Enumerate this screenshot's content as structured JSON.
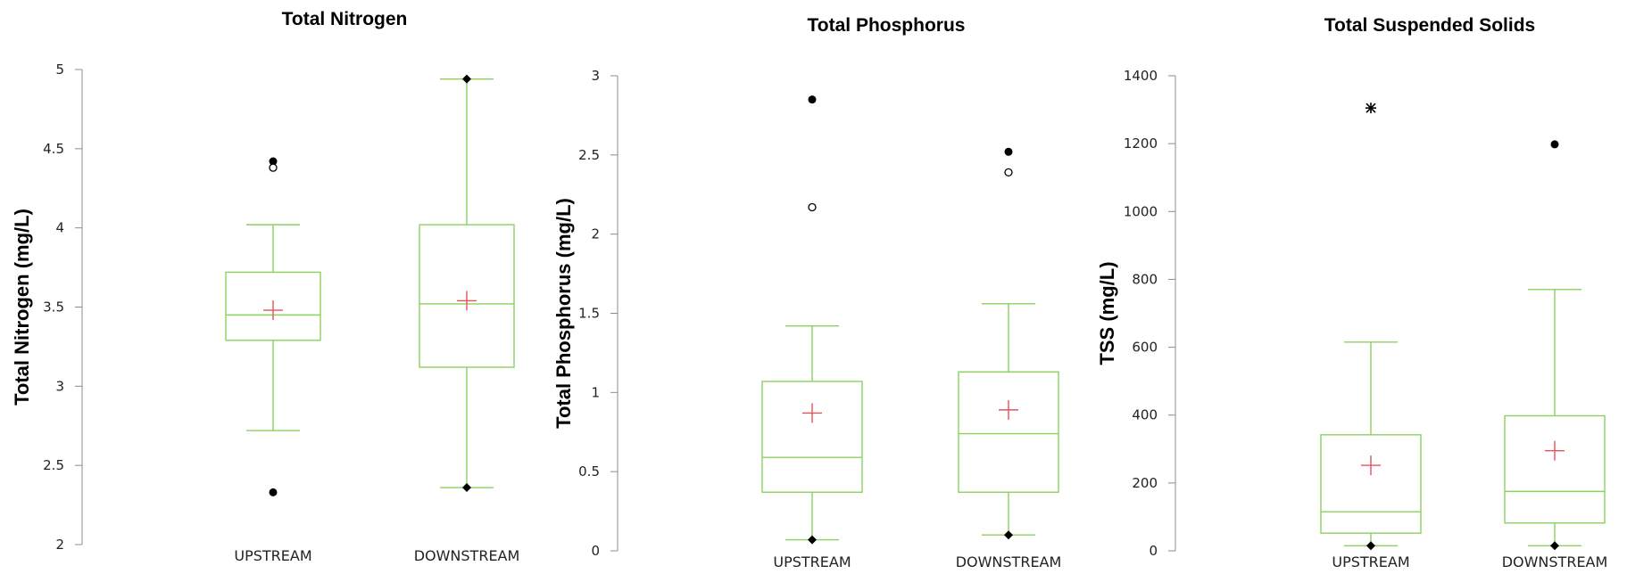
{
  "colors": {
    "box": "#8cd160",
    "mean": "#e8505b",
    "axis": "#8c8c8c",
    "outlier": "#000000"
  },
  "chart_data": [
    {
      "type": "box",
      "title": "Total Nitrogen",
      "ylabel": "Total Nitrogen (mg/L)",
      "ylim": [
        2,
        5
      ],
      "yticks": [
        2,
        2.5,
        3,
        3.5,
        4,
        4.5,
        5
      ],
      "ytick_labels": [
        "2",
        "2.5",
        "3",
        "3.5",
        "4",
        "4.5",
        "5"
      ],
      "categories": [
        "UPSTREAM",
        "DOWNSTREAM"
      ],
      "boxes": [
        {
          "category": "UPSTREAM",
          "whisker_low": 2.72,
          "q1": 3.29,
          "median": 3.45,
          "q3": 3.72,
          "whisker_high": 4.02,
          "mean": 3.48,
          "minmax": [],
          "outliers": [
            {
              "value": 2.33,
              "marker": "filled-circle"
            },
            {
              "value": 4.42,
              "marker": "filled-circle"
            },
            {
              "value": 4.38,
              "marker": "open-circle"
            }
          ]
        },
        {
          "category": "DOWNSTREAM",
          "whisker_low": 2.36,
          "q1": 3.12,
          "median": 3.52,
          "q3": 4.02,
          "whisker_high": 4.94,
          "mean": 3.54,
          "minmax": [
            2.36,
            4.94
          ],
          "outliers": []
        }
      ]
    },
    {
      "type": "box",
      "title": "Total Phosphorus",
      "ylabel": "Total Phosphorus (mg/L)",
      "ylim": [
        0,
        3
      ],
      "yticks": [
        0,
        0.5,
        1,
        1.5,
        2,
        2.5,
        3
      ],
      "ytick_labels": [
        "0",
        "0.5",
        "1",
        "1.5",
        "2",
        "2.5",
        "3"
      ],
      "categories": [
        "UPSTREAM",
        "DOWNSTREAM"
      ],
      "boxes": [
        {
          "category": "UPSTREAM",
          "whisker_low": 0.07,
          "q1": 0.37,
          "median": 0.59,
          "q3": 1.07,
          "whisker_high": 1.42,
          "mean": 0.87,
          "minmax": [
            0.07
          ],
          "outliers": [
            {
              "value": 2.85,
              "marker": "filled-circle"
            },
            {
              "value": 2.17,
              "marker": "open-circle"
            }
          ]
        },
        {
          "category": "DOWNSTREAM",
          "whisker_low": 0.1,
          "q1": 0.37,
          "median": 0.74,
          "q3": 1.13,
          "whisker_high": 1.56,
          "mean": 0.89,
          "minmax": [
            0.1
          ],
          "outliers": [
            {
              "value": 2.52,
              "marker": "filled-circle"
            },
            {
              "value": 2.39,
              "marker": "open-circle"
            }
          ]
        }
      ]
    },
    {
      "type": "box",
      "title": "Total Suspended Solids",
      "ylabel": "TSS (mg/L)",
      "ylim": [
        0,
        1400
      ],
      "yticks": [
        0,
        200,
        400,
        600,
        800,
        1000,
        1200,
        1400
      ],
      "ytick_labels": [
        "0",
        "200",
        "400",
        "600",
        "800",
        "1000",
        "1200",
        "1400"
      ],
      "categories": [
        "UPSTREAM",
        "DOWNSTREAM"
      ],
      "boxes": [
        {
          "category": "UPSTREAM",
          "whisker_low": 15,
          "q1": 52,
          "median": 115,
          "q3": 342,
          "whisker_high": 615,
          "mean": 252,
          "minmax": [
            15
          ],
          "outliers": [
            {
              "value": 1305,
              "marker": "asterisk"
            }
          ]
        },
        {
          "category": "DOWNSTREAM",
          "whisker_low": 15,
          "q1": 82,
          "median": 175,
          "q3": 398,
          "whisker_high": 770,
          "mean": 295,
          "minmax": [
            15
          ],
          "outliers": [
            {
              "value": 1198,
              "marker": "filled-circle"
            }
          ]
        }
      ]
    }
  ]
}
